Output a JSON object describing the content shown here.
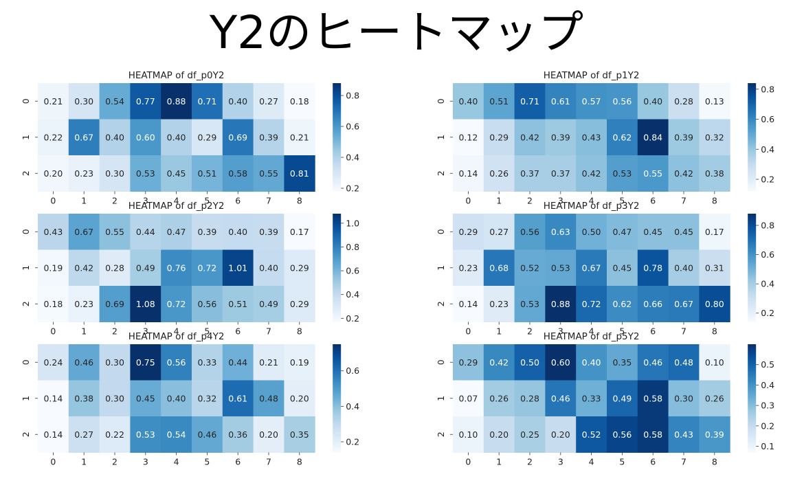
{
  "page_title": "Y2のヒートマップ",
  "colormap": [
    "#f7fbff",
    "#deebf7",
    "#c6dbef",
    "#9ecae1",
    "#6baed6",
    "#4292c6",
    "#2171b5",
    "#08519c",
    "#08306b"
  ],
  "chart_data": [
    {
      "type": "heatmap",
      "title": "HEATMAP of df_p0Y2",
      "x": [
        "0",
        "1",
        "2",
        "3",
        "4",
        "5",
        "6",
        "7",
        "8"
      ],
      "y": [
        "0",
        "1",
        "2"
      ],
      "values": [
        [
          0.21,
          0.3,
          0.54,
          0.77,
          0.88,
          0.71,
          0.4,
          0.27,
          0.18
        ],
        [
          0.22,
          0.67,
          0.4,
          0.6,
          0.4,
          0.29,
          0.69,
          0.39,
          0.21
        ],
        [
          0.2,
          0.23,
          0.3,
          0.53,
          0.45,
          0.51,
          0.58,
          0.55,
          0.81
        ]
      ],
      "vmin": 0.18,
      "vmax": 0.88,
      "colorbar_ticks": [
        "0.2",
        "0.4",
        "0.6",
        "0.8"
      ]
    },
    {
      "type": "heatmap",
      "title": "HEATMAP of df_p1Y2",
      "x": [
        "0",
        "1",
        "2",
        "3",
        "4",
        "5",
        "6",
        "7",
        "8"
      ],
      "y": [
        "0",
        "1",
        "2"
      ],
      "values": [
        [
          0.4,
          0.51,
          0.71,
          0.61,
          0.57,
          0.56,
          0.4,
          0.28,
          0.13
        ],
        [
          0.12,
          0.29,
          0.42,
          0.39,
          0.43,
          0.62,
          0.84,
          0.39,
          0.32
        ],
        [
          0.14,
          0.26,
          0.37,
          0.37,
          0.42,
          0.53,
          0.55,
          0.42,
          0.38
        ]
      ],
      "vmin": 0.12,
      "vmax": 0.84,
      "colorbar_ticks": [
        "0.2",
        "0.4",
        "0.6",
        "0.8"
      ]
    },
    {
      "type": "heatmap",
      "title": "HEATMAP of df_p2Y2",
      "x": [
        "0",
        "1",
        "2",
        "3",
        "4",
        "5",
        "6",
        "7",
        "8"
      ],
      "y": [
        "0",
        "1",
        "2"
      ],
      "values": [
        [
          0.43,
          0.67,
          0.55,
          0.44,
          0.47,
          0.39,
          0.4,
          0.39,
          0.17
        ],
        [
          0.19,
          0.42,
          0.28,
          0.49,
          0.76,
          0.72,
          1.01,
          0.4,
          0.29
        ],
        [
          0.18,
          0.23,
          0.69,
          1.08,
          0.72,
          0.56,
          0.51,
          0.49,
          0.29
        ]
      ],
      "vmin": 0.17,
      "vmax": 1.08,
      "colorbar_ticks": [
        "0.2",
        "0.4",
        "0.6",
        "0.8",
        "1.0"
      ]
    },
    {
      "type": "heatmap",
      "title": "HEATMAP of df_p3Y2",
      "x": [
        "0",
        "1",
        "2",
        "3",
        "4",
        "5",
        "6",
        "7",
        "8"
      ],
      "y": [
        "0",
        "1",
        "2"
      ],
      "values": [
        [
          0.29,
          0.27,
          0.56,
          0.63,
          0.5,
          0.47,
          0.45,
          0.45,
          0.17
        ],
        [
          0.23,
          0.68,
          0.52,
          0.53,
          0.67,
          0.45,
          0.78,
          0.4,
          0.31
        ],
        [
          0.14,
          0.23,
          0.53,
          0.88,
          0.72,
          0.62,
          0.66,
          0.67,
          0.8
        ]
      ],
      "vmin": 0.14,
      "vmax": 0.88,
      "colorbar_ticks": [
        "0.2",
        "0.4",
        "0.6",
        "0.8"
      ]
    },
    {
      "type": "heatmap",
      "title": "HEATMAP of df_p4Y2",
      "x": [
        "0",
        "1",
        "2",
        "3",
        "4",
        "5",
        "6",
        "7",
        "8"
      ],
      "y": [
        "0",
        "1",
        "2"
      ],
      "values": [
        [
          0.24,
          0.46,
          0.3,
          0.75,
          0.56,
          0.33,
          0.44,
          0.21,
          0.19
        ],
        [
          0.14,
          0.38,
          0.3,
          0.45,
          0.4,
          0.32,
          0.61,
          0.48,
          0.2
        ],
        [
          0.14,
          0.27,
          0.22,
          0.53,
          0.54,
          0.46,
          0.36,
          0.2,
          0.35
        ]
      ],
      "vmin": 0.14,
      "vmax": 0.75,
      "colorbar_ticks": [
        "0.2",
        "0.4",
        "0.6"
      ]
    },
    {
      "type": "heatmap",
      "title": "HEATMAP of df_p5Y2",
      "x": [
        "0",
        "1",
        "2",
        "3",
        "4",
        "5",
        "6",
        "7",
        "8"
      ],
      "y": [
        "0",
        "1",
        "2"
      ],
      "values": [
        [
          0.29,
          0.42,
          0.5,
          0.6,
          0.4,
          0.35,
          0.46,
          0.48,
          0.1
        ],
        [
          0.07,
          0.26,
          0.28,
          0.46,
          0.33,
          0.49,
          0.58,
          0.3,
          0.26
        ],
        [
          0.1,
          0.2,
          0.25,
          0.2,
          0.52,
          0.56,
          0.58,
          0.43,
          0.39
        ]
      ],
      "vmin": 0.07,
      "vmax": 0.6,
      "colorbar_ticks": [
        "0.1",
        "0.2",
        "0.3",
        "0.4",
        "0.5"
      ]
    }
  ]
}
